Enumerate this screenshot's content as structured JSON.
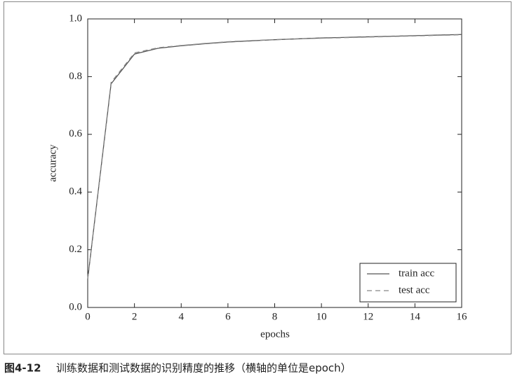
{
  "chart_data": {
    "type": "line",
    "x_label": "epochs",
    "y_label": "accuracy",
    "caption_number": "图4-12",
    "caption": "训练数据和测试数据的识别精度的推移（横轴的单位是epoch）",
    "x": [
      0,
      1,
      2,
      3,
      4,
      5,
      6,
      7,
      8,
      9,
      10,
      11,
      12,
      13,
      14,
      15,
      16
    ],
    "series": [
      {
        "name": "train acc",
        "color": "#555555",
        "linestyle": "solid",
        "values": [
          0.098,
          0.775,
          0.878,
          0.898,
          0.907,
          0.914,
          0.92,
          0.924,
          0.928,
          0.931,
          0.934,
          0.936,
          0.938,
          0.94,
          0.942,
          0.944,
          0.946
        ]
      },
      {
        "name": "test acc",
        "color": "#888888",
        "linestyle": "dashed",
        "values": [
          0.1,
          0.78,
          0.882,
          0.9,
          0.908,
          0.915,
          0.921,
          0.925,
          0.928,
          0.931,
          0.933,
          0.935,
          0.937,
          0.939,
          0.941,
          0.943,
          0.945
        ]
      }
    ],
    "xlim": [
      0,
      16
    ],
    "xticks": [
      0,
      2,
      4,
      6,
      8,
      10,
      12,
      14,
      16
    ],
    "ylim": [
      0,
      1
    ],
    "yticks": [
      {
        "value": 0,
        "label": "0.0"
      },
      0.2,
      0.4,
      0.6,
      0.8,
      {
        "value": 1,
        "label": "1.0"
      }
    ],
    "legend": "lower right"
  }
}
